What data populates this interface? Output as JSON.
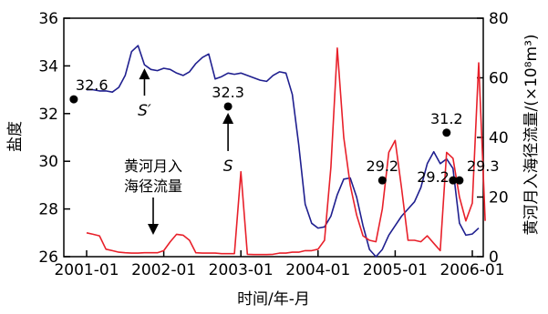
{
  "chart_data": {
    "type": "line",
    "xlabel": "时间/年-月",
    "ylabel_left": "盐度",
    "ylabel_right": "黄河月入海径流量/(×10⁸m³)",
    "x_ticks": [
      "2001-01",
      "2002-01",
      "2003-01",
      "2004-01",
      "2005-01",
      "2006-01"
    ],
    "left_axis": {
      "min": 26,
      "max": 36,
      "ticks": [
        "26",
        "28",
        "30",
        "32",
        "34",
        "36"
      ]
    },
    "right_axis": {
      "min": 0,
      "max": 80,
      "ticks": [
        "0",
        "20",
        "40",
        "60",
        "80"
      ]
    },
    "series": [
      {
        "key": "salinity",
        "axis": "left",
        "color": "#1f1f8f",
        "values": [
          [
            "2001-01",
            33.0
          ],
          [
            "2001-02",
            33.0
          ],
          [
            "2001-03",
            32.95
          ],
          [
            "2001-04",
            32.95
          ],
          [
            "2001-05",
            32.9
          ],
          [
            "2001-06",
            33.1
          ],
          [
            "2001-07",
            33.6
          ],
          [
            "2001-08",
            34.6
          ],
          [
            "2001-09",
            34.85
          ],
          [
            "2001-10",
            34.05
          ],
          [
            "2001-11",
            33.85
          ],
          [
            "2001-12",
            33.8
          ],
          [
            "2002-01",
            33.9
          ],
          [
            "2002-02",
            33.85
          ],
          [
            "2002-03",
            33.7
          ],
          [
            "2002-04",
            33.6
          ],
          [
            "2002-05",
            33.75
          ],
          [
            "2002-06",
            34.1
          ],
          [
            "2002-07",
            34.35
          ],
          [
            "2002-08",
            34.5
          ],
          [
            "2002-09",
            33.45
          ],
          [
            "2002-10",
            33.55
          ],
          [
            "2002-11",
            33.7
          ],
          [
            "2002-12",
            33.65
          ],
          [
            "2003-01",
            33.7
          ],
          [
            "2003-02",
            33.6
          ],
          [
            "2003-03",
            33.5
          ],
          [
            "2003-04",
            33.4
          ],
          [
            "2003-05",
            33.35
          ],
          [
            "2003-06",
            33.6
          ],
          [
            "2003-07",
            33.75
          ],
          [
            "2003-08",
            33.7
          ],
          [
            "2003-09",
            32.8
          ],
          [
            "2003-10",
            30.7
          ],
          [
            "2003-11",
            28.2
          ],
          [
            "2003-12",
            27.4
          ],
          [
            "2004-01",
            27.2
          ],
          [
            "2004-02",
            27.25
          ],
          [
            "2004-03",
            27.7
          ],
          [
            "2004-04",
            28.6
          ],
          [
            "2004-05",
            29.25
          ],
          [
            "2004-06",
            29.3
          ],
          [
            "2004-07",
            28.5
          ],
          [
            "2004-08",
            27.3
          ],
          [
            "2004-09",
            26.3
          ],
          [
            "2004-10",
            26.0
          ],
          [
            "2004-11",
            26.3
          ],
          [
            "2004-12",
            26.9
          ],
          [
            "2005-01",
            27.3
          ],
          [
            "2005-02",
            27.7
          ],
          [
            "2005-03",
            28.0
          ],
          [
            "2005-04",
            28.3
          ],
          [
            "2005-05",
            28.9
          ],
          [
            "2005-06",
            29.9
          ],
          [
            "2005-07",
            30.4
          ],
          [
            "2005-08",
            29.9
          ],
          [
            "2005-09",
            30.1
          ],
          [
            "2005-10",
            29.7
          ],
          [
            "2005-11",
            27.4
          ],
          [
            "2005-12",
            26.9
          ],
          [
            "2006-01",
            26.95
          ],
          [
            "2006-02",
            27.2
          ]
        ]
      },
      {
        "key": "runoff",
        "name": "黄河月入海径流量",
        "axis": "right",
        "color": "#e8202a",
        "values": [
          [
            "2001-01",
            8
          ],
          [
            "2001-02",
            7.5
          ],
          [
            "2001-03",
            7
          ],
          [
            "2001-04",
            2.5
          ],
          [
            "2001-05",
            2
          ],
          [
            "2001-06",
            1.5
          ],
          [
            "2001-07",
            1.3
          ],
          [
            "2001-08",
            1.2
          ],
          [
            "2001-09",
            1.2
          ],
          [
            "2001-10",
            1.3
          ],
          [
            "2001-11",
            1.3
          ],
          [
            "2001-12",
            1.3
          ],
          [
            "2002-01",
            2
          ],
          [
            "2002-02",
            5
          ],
          [
            "2002-03",
            7.5
          ],
          [
            "2002-04",
            7.2
          ],
          [
            "2002-05",
            5.5
          ],
          [
            "2002-06",
            1.3
          ],
          [
            "2002-07",
            1.2
          ],
          [
            "2002-08",
            1.2
          ],
          [
            "2002-09",
            1.2
          ],
          [
            "2002-10",
            1
          ],
          [
            "2002-11",
            1
          ],
          [
            "2002-12",
            1
          ],
          [
            "2003-01",
            28.5
          ],
          [
            "2003-02",
            0.8
          ],
          [
            "2003-03",
            0.7
          ],
          [
            "2003-04",
            0.7
          ],
          [
            "2003-05",
            0.7
          ],
          [
            "2003-06",
            0.8
          ],
          [
            "2003-07",
            1.2
          ],
          [
            "2003-08",
            1.2
          ],
          [
            "2003-09",
            1.5
          ],
          [
            "2003-10",
            1.5
          ],
          [
            "2003-11",
            2
          ],
          [
            "2003-12",
            2
          ],
          [
            "2004-01",
            2.5
          ],
          [
            "2004-02",
            5.5
          ],
          [
            "2004-03",
            30
          ],
          [
            "2004-04",
            70
          ],
          [
            "2004-05",
            40
          ],
          [
            "2004-06",
            24
          ],
          [
            "2004-07",
            14
          ],
          [
            "2004-08",
            7
          ],
          [
            "2004-09",
            5.5
          ],
          [
            "2004-10",
            5
          ],
          [
            "2004-11",
            16
          ],
          [
            "2004-12",
            35
          ],
          [
            "2005-01",
            39
          ],
          [
            "2005-02",
            23
          ],
          [
            "2005-03",
            5.5
          ],
          [
            "2005-04",
            5.5
          ],
          [
            "2005-05",
            5
          ],
          [
            "2005-06",
            7
          ],
          [
            "2005-07",
            4.5
          ],
          [
            "2005-08",
            2
          ],
          [
            "2005-09",
            35
          ],
          [
            "2005-10",
            33
          ],
          [
            "2005-11",
            20
          ],
          [
            "2005-12",
            12
          ],
          [
            "2006-01",
            18
          ],
          [
            "2006-02",
            65
          ],
          [
            "2006-03",
            12
          ]
        ]
      }
    ],
    "annotations": [
      {
        "label": "32.6",
        "x": "2000-11",
        "y": 32.6
      },
      {
        "label": "32.3",
        "x": "2002-11",
        "y": 32.3
      },
      {
        "label": "31.2",
        "x": "2005-09",
        "y": 31.2
      },
      {
        "label": "29.2",
        "x": "2004-11",
        "y": 29.2
      },
      {
        "label": "29.2",
        "x": "2005-10",
        "y": 29.2
      },
      {
        "label": "29.3",
        "x": "2005-11",
        "y": 29.2
      }
    ],
    "arrow_labels": [
      {
        "label": "S′",
        "points_to": "2001-10"
      },
      {
        "label": "S",
        "points_to": "2002-11"
      }
    ],
    "text_callout": {
      "line1": "黄河月入",
      "line2": "海径流量"
    }
  }
}
